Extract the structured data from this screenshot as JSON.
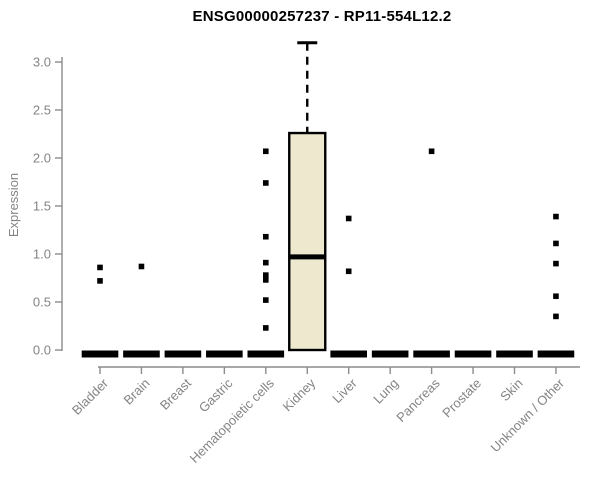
{
  "chart_data": {
    "type": "boxplot",
    "title": "ENSG00000257237 - RP11-554L12.2",
    "xlabel": "",
    "ylabel": "Expression",
    "ylim": [
      0,
      3.25
    ],
    "yticks": [
      0.0,
      0.5,
      1.0,
      1.5,
      2.0,
      2.5,
      3.0
    ],
    "grid": false,
    "legend": "none",
    "categories": [
      "Bladder",
      "Brain",
      "Breast",
      "Gastric",
      "Hematopoietic cells",
      "Kidney",
      "Liver",
      "Lung",
      "Pancreas",
      "Prostate",
      "Skin",
      "Unknown / Other"
    ],
    "boxes": [
      {
        "category": "Bladder",
        "low": 0,
        "q1": 0,
        "median": 0,
        "q3": 0,
        "high": 0,
        "outliers": [
          0.86,
          0.72
        ]
      },
      {
        "category": "Brain",
        "low": 0,
        "q1": 0,
        "median": 0,
        "q3": 0,
        "high": 0,
        "outliers": [
          0.87
        ]
      },
      {
        "category": "Breast",
        "low": 0,
        "q1": 0,
        "median": 0,
        "q3": 0,
        "high": 0,
        "outliers": []
      },
      {
        "category": "Gastric",
        "low": 0,
        "q1": 0,
        "median": 0,
        "q3": 0,
        "high": 0,
        "outliers": []
      },
      {
        "category": "Hematopoietic cells",
        "low": 0,
        "q1": 0,
        "median": 0,
        "q3": 0,
        "high": 0,
        "outliers": [
          2.07,
          1.74,
          1.18,
          0.91,
          0.78,
          0.73,
          0.52,
          0.23
        ]
      },
      {
        "category": "Kidney",
        "low": 0,
        "q1": 0,
        "median": 0.97,
        "q3": 2.26,
        "high": 3.2,
        "outliers": []
      },
      {
        "category": "Liver",
        "low": 0,
        "q1": 0,
        "median": 0,
        "q3": 0,
        "high": 0,
        "outliers": [
          1.37,
          0.82
        ]
      },
      {
        "category": "Lung",
        "low": 0,
        "q1": 0,
        "median": 0,
        "q3": 0,
        "high": 0,
        "outliers": []
      },
      {
        "category": "Pancreas",
        "low": 0,
        "q1": 0,
        "median": 0,
        "q3": 0,
        "high": 0,
        "outliers": [
          2.07
        ]
      },
      {
        "category": "Prostate",
        "low": 0,
        "q1": 0,
        "median": 0,
        "q3": 0,
        "high": 0,
        "outliers": []
      },
      {
        "category": "Skin",
        "low": 0,
        "q1": 0,
        "median": 0,
        "q3": 0,
        "high": 0,
        "outliers": []
      },
      {
        "category": "Unknown / Other",
        "low": 0,
        "q1": 0,
        "median": 0,
        "q3": 0,
        "high": 0,
        "outliers": [
          1.39,
          1.11,
          0.9,
          0.56,
          0.35
        ]
      }
    ],
    "colors": {
      "box_fill": "#ede8ce",
      "box_border": "#000000",
      "median": "#000000",
      "whisker": "#000000",
      "outlier": "#000000",
      "flat_bar": "#000000",
      "axis_line": "#8c8c8c",
      "axis_text": "#848484",
      "title_text": "#000000"
    }
  }
}
